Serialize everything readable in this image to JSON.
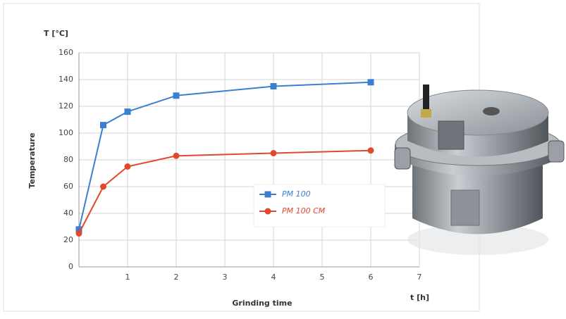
{
  "chart_data": {
    "type": "line",
    "y_unit_label": "T [°C]",
    "x_unit_label": "t [h]",
    "ylabel": "Temperature",
    "xlabel": "Grinding time",
    "x": [
      0,
      0.5,
      1,
      2,
      4,
      6
    ],
    "series": [
      {
        "name": "PM 100",
        "color": "#3b7fd0",
        "marker": "square",
        "values": [
          28,
          106,
          116,
          128,
          135,
          138
        ]
      },
      {
        "name": "PM 100 CM",
        "color": "#e2482b",
        "marker": "circle",
        "values": [
          25,
          60,
          75,
          83,
          85,
          87
        ]
      }
    ],
    "xlim": [
      0,
      7
    ],
    "xticks": [
      1,
      2,
      3,
      4,
      5,
      6,
      7
    ],
    "ylim": [
      0,
      160
    ],
    "yticks": [
      0,
      20,
      40,
      60,
      80,
      100,
      120,
      140,
      160
    ],
    "grid": true
  }
}
